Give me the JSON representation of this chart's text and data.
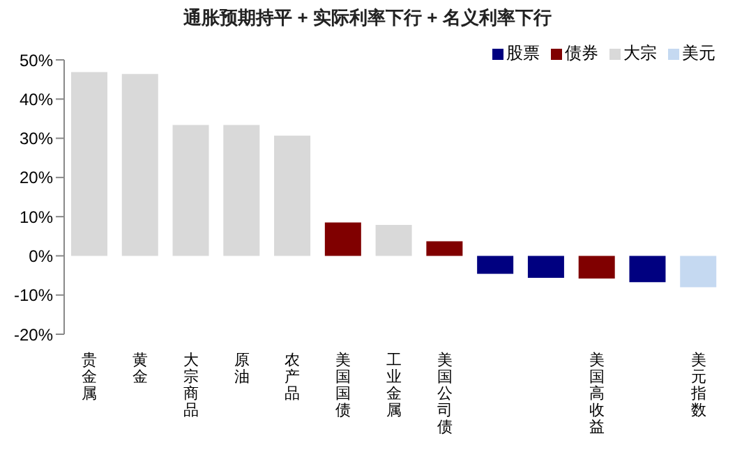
{
  "chart_data": {
    "type": "bar",
    "title": "通胀预期持平 + 实际利率下行 + 名义利率下行",
    "categories": [
      "贵金属",
      "黄金",
      "大宗商品",
      "原油",
      "农产品",
      "美国国债",
      "工业金属",
      "美国公司债",
      null,
      null,
      "美国高收益",
      null,
      "美元指数"
    ],
    "series": [
      {
        "name": "股票",
        "color": "#000080",
        "values": [
          null,
          null,
          null,
          null,
          null,
          null,
          null,
          null,
          -4.6,
          -5.6,
          null,
          -6.7,
          null
        ]
      },
      {
        "name": "债券",
        "color": "#800000",
        "values": [
          null,
          null,
          null,
          null,
          null,
          8.5,
          null,
          3.7,
          null,
          null,
          -5.8,
          null,
          null
        ]
      },
      {
        "name": "大宗",
        "color": "#d9d9d9",
        "values": [
          46.9,
          46.4,
          33.4,
          33.4,
          30.7,
          null,
          7.9,
          null,
          null,
          null,
          null,
          null,
          null
        ]
      },
      {
        "name": "美元",
        "color": "#c5d9f1",
        "values": [
          null,
          null,
          null,
          null,
          null,
          null,
          null,
          null,
          null,
          null,
          null,
          null,
          -8.0
        ]
      }
    ],
    "stacked": true,
    "ylim": [
      -20,
      50
    ],
    "yticks": [
      {
        "value": -20,
        "label": "-20%"
      },
      {
        "value": -10,
        "label": "-10%"
      },
      {
        "value": 0,
        "label": "0%"
      },
      {
        "value": 10,
        "label": "10%"
      },
      {
        "value": 20,
        "label": "20%"
      },
      {
        "value": 30,
        "label": "30%"
      },
      {
        "value": 40,
        "label": "40%"
      },
      {
        "value": 50,
        "label": "50%"
      }
    ],
    "grid": false,
    "legend": "top right"
  }
}
